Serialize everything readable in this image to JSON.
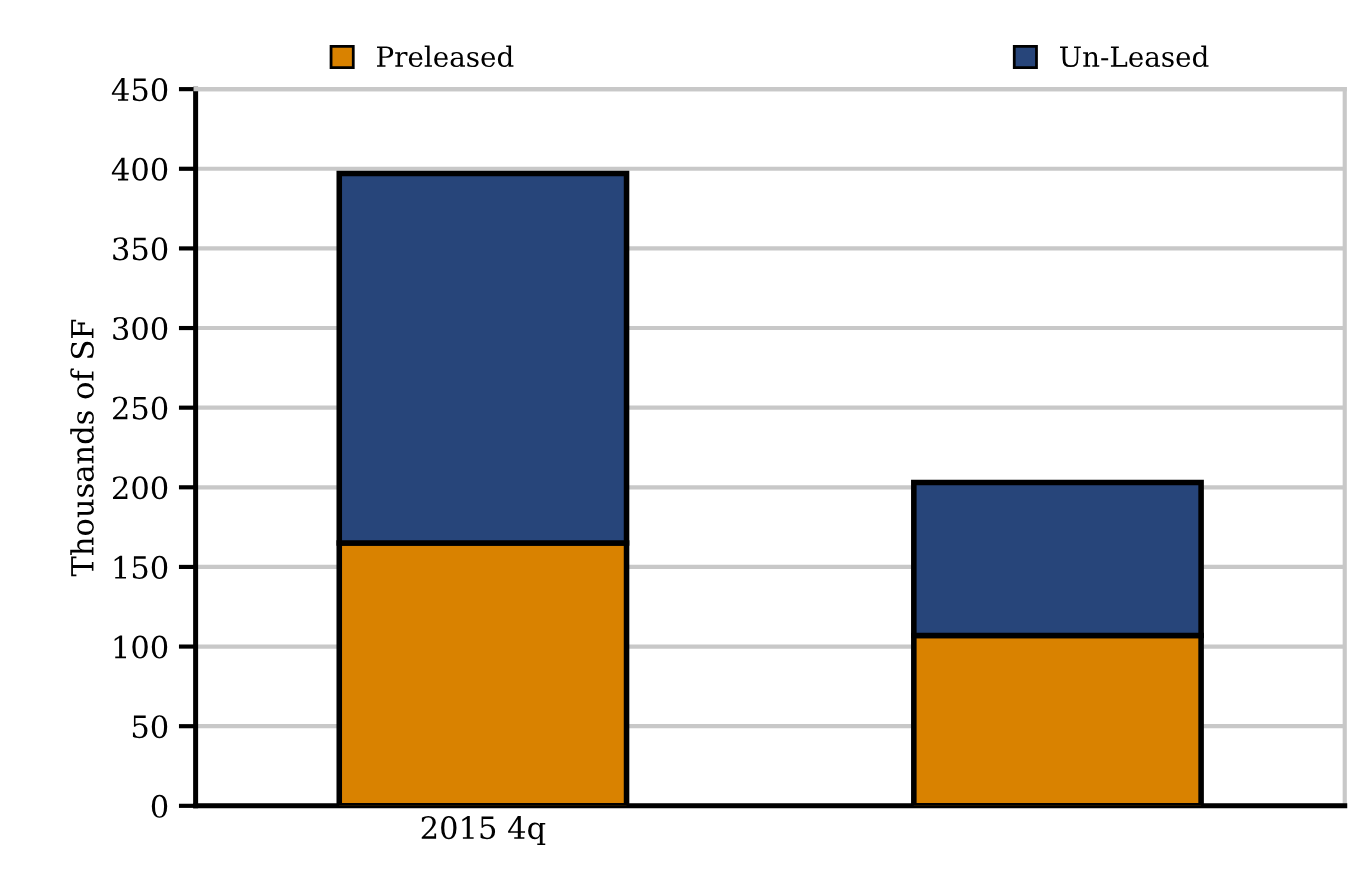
{
  "chart_data": {
    "type": "bar",
    "stacked": true,
    "ylabel": "Thousands of SF",
    "categories": [
      "2015 4q",
      null
    ],
    "series": [
      {
        "name": "Preleased",
        "color": "#d98200",
        "values": [
          165,
          107
        ]
      },
      {
        "name": "Un-Leased",
        "color": "#27457a",
        "values": [
          232,
          96
        ]
      }
    ],
    "ylim": [
      0,
      450
    ],
    "yticks": [
      0,
      50,
      100,
      150,
      200,
      250,
      300,
      350,
      400,
      450
    ],
    "grid": "y",
    "legend": "top"
  }
}
